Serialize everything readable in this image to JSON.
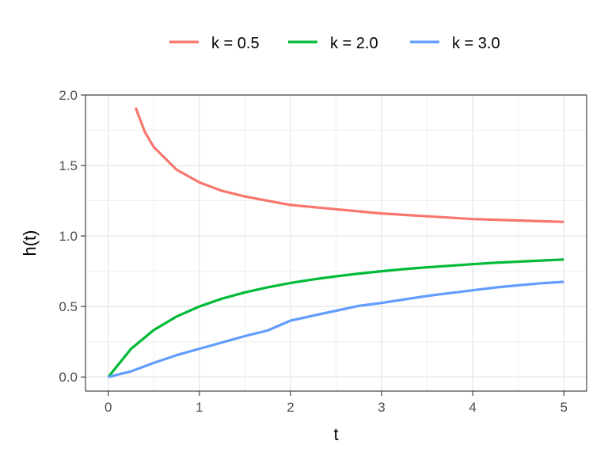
{
  "chart_data": {
    "type": "line",
    "title": "",
    "xlabel": "t",
    "ylabel": "h(t)",
    "xlim": [
      -0.25,
      5.25
    ],
    "ylim": [
      -0.1,
      2.0
    ],
    "x_ticks": [
      0,
      1,
      2,
      3,
      4,
      5
    ],
    "x_tick_labels": [
      "0",
      "1",
      "2",
      "3",
      "4",
      "5"
    ],
    "y_ticks": [
      0.0,
      0.5,
      1.0,
      1.5,
      2.0
    ],
    "y_tick_labels": [
      "0.0",
      "0.5",
      "1.0",
      "1.5",
      "2.0"
    ],
    "grid": true,
    "legend_position": "top",
    "x": [
      0.0,
      0.25,
      0.5,
      0.75,
      1.0,
      1.25,
      1.5,
      1.75,
      2.0,
      2.25,
      2.5,
      2.75,
      3.0,
      3.25,
      3.5,
      3.75,
      4.0,
      4.25,
      4.5,
      4.75,
      5.0
    ],
    "series": [
      {
        "name": "k = 0.5",
        "color": "#F8766D",
        "x": [
          0.3,
          0.4,
          0.5,
          0.75,
          1.0,
          1.25,
          1.5,
          1.75,
          2.0,
          2.5,
          3.0,
          3.5,
          4.0,
          4.5,
          5.0
        ],
        "values": [
          1.91,
          1.74,
          1.63,
          1.47,
          1.38,
          1.32,
          1.28,
          1.25,
          1.22,
          1.19,
          1.16,
          1.14,
          1.12,
          1.11,
          1.1
        ]
      },
      {
        "name": "k = 2.0",
        "color": "#00BA38",
        "values": [
          0.0,
          0.2,
          0.333,
          0.429,
          0.5,
          0.556,
          0.6,
          0.636,
          0.667,
          0.692,
          0.714,
          0.733,
          0.75,
          0.765,
          0.778,
          0.789,
          0.8,
          0.81,
          0.818,
          0.826,
          0.833
        ]
      },
      {
        "name": "k = 3.0",
        "color": "#619CFF",
        "values": [
          0.0,
          0.04,
          0.1,
          0.155,
          0.2,
          0.245,
          0.29,
          0.33,
          0.4,
          0.435,
          0.47,
          0.505,
          0.525,
          0.55,
          0.575,
          0.595,
          0.615,
          0.635,
          0.65,
          0.665,
          0.675
        ]
      }
    ]
  }
}
